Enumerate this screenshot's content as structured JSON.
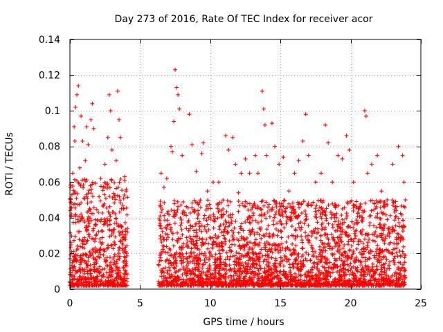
{
  "chart_data": {
    "type": "scatter",
    "title": "Day 273 of 2016, Rate Of TEC Index for receiver acor",
    "xlabel": "GPS time / hours",
    "ylabel": "ROTI / TECUs",
    "xlim": [
      0,
      25
    ],
    "ylim": [
      0,
      0.14
    ],
    "x_ticks": [
      0,
      5,
      10,
      15,
      20,
      25
    ],
    "x_tick_labels": [
      "0",
      "5",
      "10",
      "15",
      "20",
      "25"
    ],
    "y_ticks": [
      0,
      0.02,
      0.04,
      0.06,
      0.08,
      0.1,
      0.12,
      0.14
    ],
    "y_tick_labels": [
      "0",
      "0.02",
      "0.04",
      "0.06",
      "0.08",
      "0.1",
      "0.12",
      "0.14"
    ],
    "grid": true,
    "marker": "plus",
    "color": "#ff0000",
    "series": [
      {
        "name": "ROTI",
        "points": [
          [
            0.5,
            0.109
          ],
          [
            0.6,
            0.114
          ],
          [
            0.4,
            0.102
          ],
          [
            0.3,
            0.091
          ],
          [
            0.35,
            0.083
          ],
          [
            0.8,
            0.097
          ],
          [
            0.9,
            0.083
          ],
          [
            1.2,
            0.091
          ],
          [
            1.6,
            0.104
          ],
          [
            1.5,
            0.095
          ],
          [
            1.7,
            0.09
          ],
          [
            1.3,
            0.081
          ],
          [
            0.2,
            0.065
          ],
          [
            0.7,
            0.068
          ],
          [
            1.1,
            0.072
          ],
          [
            2.5,
            0.07
          ],
          [
            2.8,
            0.109
          ],
          [
            2.9,
            0.1
          ],
          [
            2.7,
            0.085
          ],
          [
            3.0,
            0.078
          ],
          [
            3.4,
            0.111
          ],
          [
            3.5,
            0.095
          ],
          [
            3.3,
            0.072
          ],
          [
            3.6,
            0.085
          ],
          [
            2.2,
            0.062
          ],
          [
            3.9,
            0.063
          ],
          [
            4.0,
            0.055
          ],
          [
            3.8,
            0.045
          ],
          [
            4.1,
            0.032
          ],
          [
            6.5,
            0.065
          ],
          [
            6.7,
            0.057
          ],
          [
            6.9,
            0.062
          ],
          [
            7.2,
            0.08
          ],
          [
            7.4,
            0.094
          ],
          [
            7.5,
            0.123
          ],
          [
            7.6,
            0.113
          ],
          [
            7.7,
            0.109
          ],
          [
            7.8,
            0.101
          ],
          [
            7.3,
            0.077
          ],
          [
            8.0,
            0.075
          ],
          [
            8.5,
            0.098
          ],
          [
            8.7,
            0.081
          ],
          [
            9.0,
            0.066
          ],
          [
            9.4,
            0.076
          ],
          [
            9.5,
            0.082
          ],
          [
            9.8,
            0.055
          ],
          [
            10.2,
            0.06
          ],
          [
            10.6,
            0.06
          ],
          [
            10.9,
            0.045
          ],
          [
            11.1,
            0.086
          ],
          [
            11.3,
            0.078
          ],
          [
            11.6,
            0.085
          ],
          [
            11.8,
            0.07
          ],
          [
            12.0,
            0.054
          ],
          [
            12.2,
            0.065
          ],
          [
            12.5,
            0.073
          ],
          [
            12.8,
            0.065
          ],
          [
            13.2,
            0.075
          ],
          [
            13.4,
            0.065
          ],
          [
            13.7,
            0.111
          ],
          [
            13.8,
            0.101
          ],
          [
            13.9,
            0.092
          ],
          [
            14.0,
            0.075
          ],
          [
            14.4,
            0.093
          ],
          [
            14.6,
            0.08
          ],
          [
            14.9,
            0.07
          ],
          [
            15.2,
            0.074
          ],
          [
            15.6,
            0.055
          ],
          [
            16.0,
            0.065
          ],
          [
            16.3,
            0.072
          ],
          [
            16.6,
            0.083
          ],
          [
            16.8,
            0.098
          ],
          [
            17.0,
            0.075
          ],
          [
            17.5,
            0.06
          ],
          [
            17.9,
            0.065
          ],
          [
            18.2,
            0.092
          ],
          [
            18.4,
            0.082
          ],
          [
            18.7,
            0.06
          ],
          [
            19.1,
            0.075
          ],
          [
            19.4,
            0.073
          ],
          [
            19.7,
            0.086
          ],
          [
            19.9,
            0.078
          ],
          [
            20.2,
            0.06
          ],
          [
            20.6,
            0.045
          ],
          [
            21.0,
            0.1
          ],
          [
            21.1,
            0.097
          ],
          [
            21.2,
            0.065
          ],
          [
            21.5,
            0.07
          ],
          [
            21.9,
            0.075
          ],
          [
            22.2,
            0.055
          ],
          [
            22.6,
            0.05
          ],
          [
            23.0,
            0.07
          ],
          [
            23.4,
            0.08
          ],
          [
            23.7,
            0.075
          ],
          [
            23.8,
            0.06
          ],
          [
            23.9,
            0.05
          ]
        ],
        "dense_bands": [
          {
            "x_range": [
              0.0,
              4.1
            ],
            "y_range": [
              0.002,
              0.062
            ],
            "count": 720
          },
          {
            "x_range": [
              6.3,
              23.9
            ],
            "y_range": [
              0.002,
              0.05
            ],
            "count": 2800
          }
        ]
      }
    ]
  }
}
